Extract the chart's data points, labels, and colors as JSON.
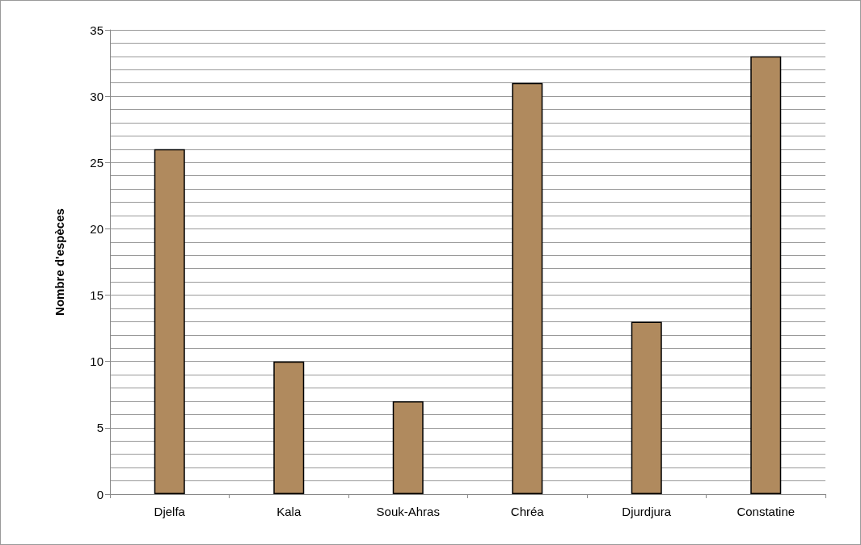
{
  "chart_data": {
    "type": "bar",
    "ylabel": "Nombre d'espèces",
    "categories": [
      "Djelfa",
      "Kala",
      "Souk-Ahras",
      "Chréa",
      "Djurdjura",
      "Constatine"
    ],
    "values": [
      26,
      10,
      7,
      31,
      13,
      33
    ],
    "color": "#b08a5e",
    "ylim": [
      0,
      35
    ],
    "yticks": [
      0,
      {
        "value": 1,
        "label": null
      },
      {
        "value": 2,
        "label": null
      },
      {
        "value": 3,
        "label": null
      },
      {
        "value": 4,
        "label": null
      },
      5,
      {
        "value": 6,
        "label": null
      },
      {
        "value": 7,
        "label": null
      },
      {
        "value": 8,
        "label": null
      },
      {
        "value": 9,
        "label": null
      },
      10,
      {
        "value": 11,
        "label": null
      },
      {
        "value": 12,
        "label": null
      },
      {
        "value": 13,
        "label": null
      },
      {
        "value": 14,
        "label": null
      },
      15,
      {
        "value": 16,
        "label": null
      },
      {
        "value": 17,
        "label": null
      },
      {
        "value": 18,
        "label": null
      },
      {
        "value": 19,
        "label": null
      },
      20,
      {
        "value": 21,
        "label": null
      },
      {
        "value": 22,
        "label": null
      },
      {
        "value": 23,
        "label": null
      },
      {
        "value": 24,
        "label": null
      },
      25,
      {
        "value": 26,
        "label": null
      },
      {
        "value": 27,
        "label": null
      },
      {
        "value": 28,
        "label": null
      },
      {
        "value": 29,
        "label": null
      },
      30,
      {
        "value": 31,
        "label": null
      },
      {
        "value": 32,
        "label": null
      },
      {
        "value": 33,
        "label": null
      },
      {
        "value": 34,
        "label": null
      },
      35
    ],
    "grid": true
  }
}
